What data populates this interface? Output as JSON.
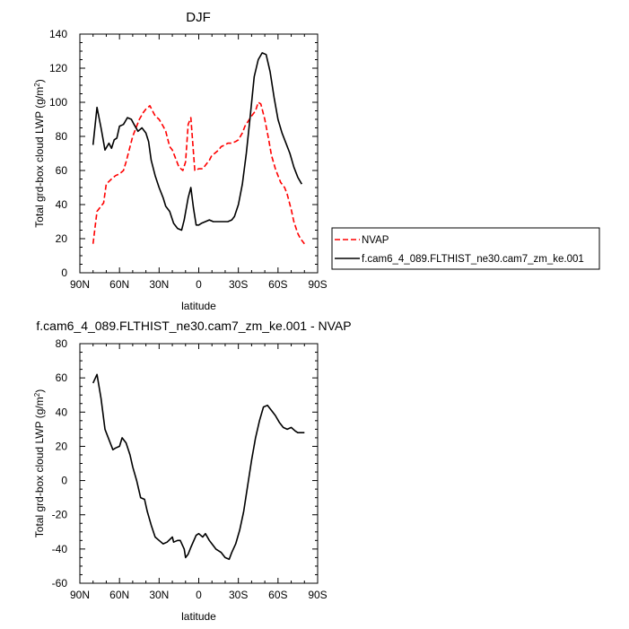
{
  "chart_data": [
    {
      "type": "line",
      "title": "DJF",
      "xlabel": "latitude",
      "ylabel": "Total grd-box cloud LWP (g/m",
      "ylabel_sup": "2",
      "ylabel_tail": ")",
      "xlim": [
        90,
        -90
      ],
      "ylim": [
        0,
        140
      ],
      "xticks": [
        90,
        60,
        30,
        0,
        -30,
        -60,
        -90
      ],
      "xtick_labels": [
        "90N",
        "60N",
        "30N",
        "0",
        "30S",
        "60S",
        "90S"
      ],
      "yticks": [
        0,
        20,
        40,
        60,
        80,
        100,
        120,
        140
      ],
      "ytick_labels": [
        "0",
        "20",
        "40",
        "60",
        "80",
        "100",
        "120",
        "140"
      ],
      "legend_position": "right",
      "series": [
        {
          "name": "NVAP",
          "color": "#ff0000",
          "dash": "dashed",
          "x": [
            80,
            77,
            72,
            70,
            66,
            63,
            60,
            57,
            55,
            50,
            45,
            42,
            40,
            37,
            33,
            30,
            27,
            25,
            22,
            20,
            17,
            15,
            12,
            10,
            8,
            6,
            3,
            0,
            -3,
            -5,
            -8,
            -10,
            -12,
            -15,
            -17,
            -20,
            -22,
            -25,
            -28,
            -30,
            -33,
            -35,
            -40,
            -43,
            -45,
            -47,
            -50,
            -53,
            -55,
            -58,
            -60,
            -62,
            -65,
            -67,
            -70,
            -72,
            -75,
            -77,
            -80
          ],
          "y": [
            17,
            36,
            41,
            52,
            55,
            57,
            58,
            60,
            65,
            80,
            90,
            94,
            96,
            98,
            92,
            90,
            86,
            83,
            74,
            72,
            66,
            62,
            60,
            65,
            87,
            91,
            60,
            61,
            61,
            63,
            66,
            69,
            70,
            72,
            74,
            75,
            76,
            76,
            77,
            78,
            82,
            86,
            92,
            95,
            100,
            99,
            90,
            78,
            69,
            61,
            57,
            53,
            50,
            46,
            37,
            30,
            23,
            20,
            17
          ]
        },
        {
          "name": "f.cam6_4_089.FLTHIST_ne30.cam7_zm_ke.001",
          "color": "#000000",
          "dash": "solid",
          "x": [
            80,
            77,
            74,
            71,
            68,
            66,
            64,
            62,
            60,
            57,
            54,
            51,
            49,
            46,
            43,
            40,
            38,
            36,
            33,
            30,
            27,
            25,
            22,
            19,
            16,
            13,
            11,
            8,
            6,
            4,
            2,
            0,
            -2,
            -5,
            -8,
            -11,
            -14,
            -17,
            -20,
            -22,
            -25,
            -27,
            -30,
            -33,
            -36,
            -39,
            -42,
            -45,
            -48,
            -51,
            -54,
            -57,
            -60,
            -63,
            -66,
            -69,
            -72,
            -75,
            -78
          ],
          "y": [
            75,
            97,
            85,
            72,
            76,
            73,
            78,
            79,
            86,
            87,
            91,
            90,
            87,
            83,
            85,
            82,
            77,
            66,
            57,
            50,
            44,
            39,
            36,
            29,
            26,
            25,
            31,
            44,
            50,
            38,
            28,
            28,
            29,
            30,
            31,
            30,
            30,
            30,
            30,
            30,
            31,
            33,
            40,
            52,
            70,
            92,
            115,
            125,
            129,
            128,
            118,
            103,
            90,
            82,
            76,
            70,
            62,
            56,
            52
          ]
        }
      ]
    },
    {
      "type": "line",
      "title": "f.cam6_4_089.FLTHIST_ne30.cam7_zm_ke.001 - NVAP",
      "xlabel": "latitude",
      "ylabel": "Total grd-box cloud LWP (g/m",
      "ylabel_sup": "2",
      "ylabel_tail": ")",
      "xlim": [
        90,
        -90
      ],
      "ylim": [
        -60,
        80
      ],
      "xticks": [
        90,
        60,
        30,
        0,
        -30,
        -60,
        -90
      ],
      "xtick_labels": [
        "90N",
        "60N",
        "30N",
        "0",
        "30S",
        "60S",
        "90S"
      ],
      "yticks": [
        -60,
        -40,
        -20,
        0,
        20,
        40,
        60,
        80
      ],
      "ytick_labels": [
        "-60",
        "-40",
        "-20",
        "0",
        "20",
        "40",
        "60",
        "80"
      ],
      "series": [
        {
          "color": "#000000",
          "dash": "solid",
          "x": [
            80,
            77,
            74,
            71,
            68,
            65,
            63,
            60,
            58,
            55,
            52,
            50,
            47,
            44,
            41,
            39,
            36,
            33,
            30,
            27,
            24,
            20,
            19,
            16,
            14,
            11,
            10,
            8,
            6,
            2,
            0,
            -3,
            -5,
            -8,
            -10,
            -13,
            -17,
            -20,
            -23,
            -25,
            -28,
            -31,
            -34,
            -37,
            -40,
            -43,
            -46,
            -49,
            -52,
            -55,
            -58,
            -61,
            -64,
            -67,
            -70,
            -73,
            -75,
            -77,
            -80
          ],
          "y": [
            57,
            62,
            48,
            30,
            24,
            18,
            19,
            20,
            25,
            22,
            15,
            8,
            0,
            -10,
            -11,
            -18,
            -26,
            -33,
            -35,
            -37,
            -36,
            -33,
            -36,
            -35,
            -35,
            -40,
            -45,
            -43,
            -39,
            -32,
            -31,
            -33,
            -31,
            -35,
            -37,
            -40,
            -42,
            -45,
            -46,
            -42,
            -37,
            -29,
            -18,
            -3,
            12,
            25,
            35,
            43,
            44,
            41,
            38,
            34,
            31,
            30,
            31,
            29,
            28,
            28,
            28
          ]
        }
      ]
    }
  ]
}
